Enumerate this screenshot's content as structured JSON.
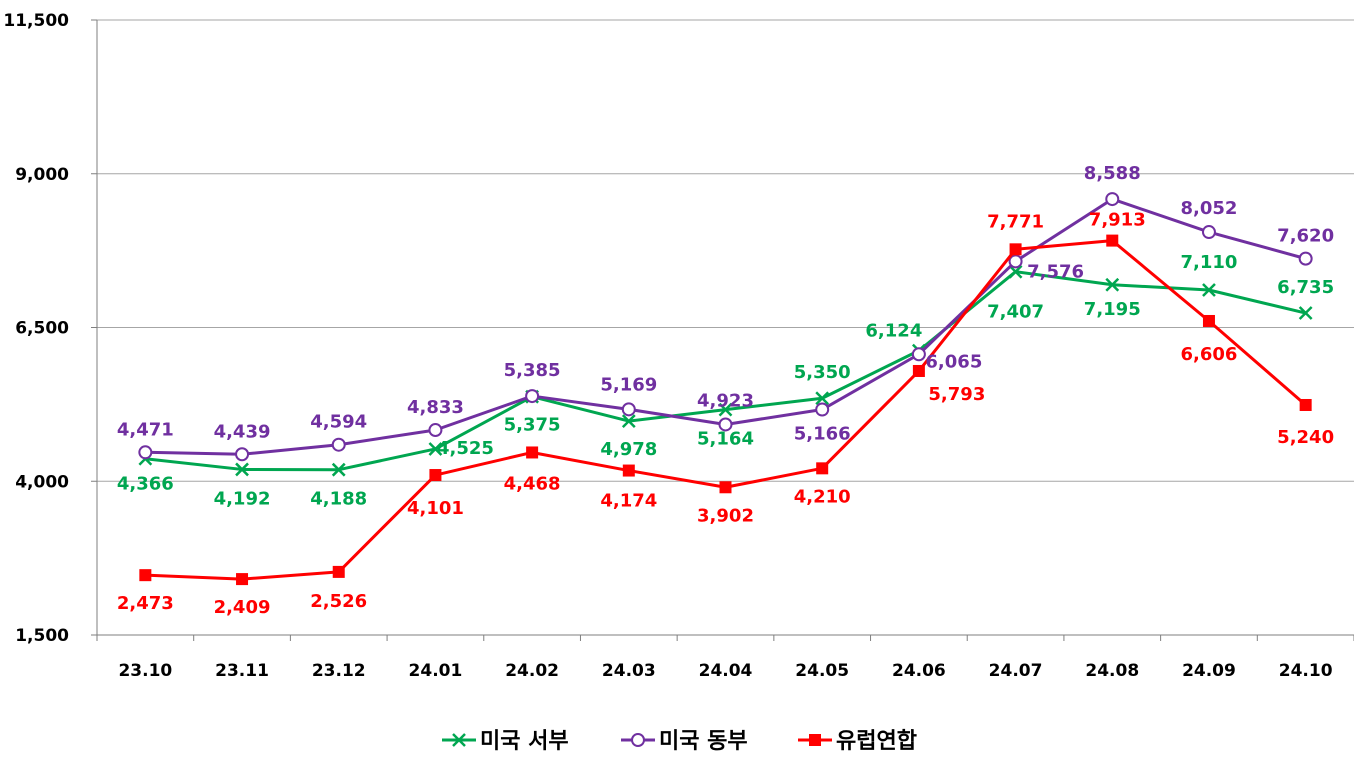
{
  "chart_data": {
    "type": "line",
    "categories": [
      "23.10",
      "23.11",
      "23.12",
      "24.01",
      "24.02",
      "24.03",
      "24.04",
      "24.05",
      "24.06",
      "24.07",
      "24.08",
      "24.09",
      "24.10"
    ],
    "ylim": [
      1500,
      11500
    ],
    "yticks": [
      1500,
      4000,
      6500,
      9000,
      11500
    ],
    "ytick_labels": [
      "1,500",
      "4,000",
      "6,500",
      "9,000",
      "11,500"
    ],
    "grid": true,
    "legend_position": "bottom",
    "series": [
      {
        "name": "미국 서부",
        "color": "#00A650",
        "marker": "x",
        "values": [
          4366,
          4192,
          4188,
          4525,
          5375,
          4978,
          5164,
          5350,
          6124,
          7407,
          7195,
          7110,
          6735
        ],
        "labels": [
          "4,366",
          "4,192",
          "4,188",
          "4,525",
          "5,375",
          "4,978",
          "5,164",
          "5,350",
          "6,124",
          "7,407",
          "7,195",
          "7,110",
          "6,735"
        ]
      },
      {
        "name": "미국 동부",
        "color": "#7030A0",
        "marker": "circle",
        "values": [
          4471,
          4439,
          4594,
          4833,
          5385,
          5169,
          4923,
          5166,
          6065,
          7576,
          8588,
          8052,
          7620
        ],
        "labels": [
          "4,471",
          "4,439",
          "4,594",
          "4,833",
          "5,385",
          "5,169",
          "4,923",
          "5,166",
          "6,065",
          "7,576",
          "8,588",
          "8,052",
          "7,620"
        ]
      },
      {
        "name": "유럽연합",
        "color": "#FF0000",
        "marker": "square",
        "values": [
          2473,
          2409,
          2526,
          4101,
          4468,
          4174,
          3902,
          4210,
          5793,
          7771,
          7913,
          6606,
          5240
        ],
        "labels": [
          "2,473",
          "2,409",
          "2,526",
          "4,101",
          "4,468",
          "4,174",
          "3,902",
          "4,210",
          "5,793",
          "7,771",
          "7,913",
          "6,606",
          "5,240"
        ]
      }
    ]
  }
}
